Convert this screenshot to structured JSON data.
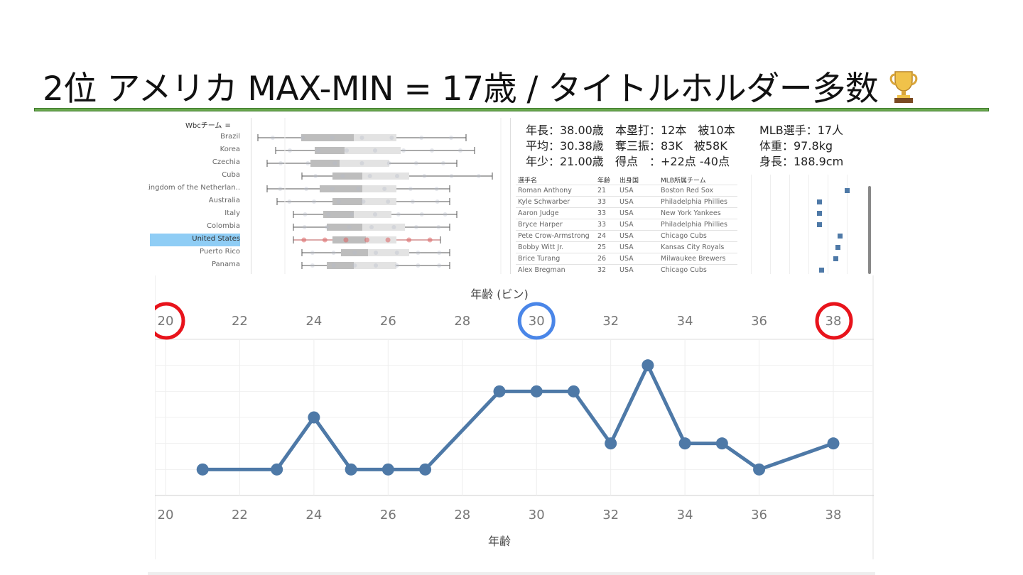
{
  "title": "2位 アメリカ MAX-MIN = 17歳 / タイトルホルダー多数",
  "trophy_icon": "trophy-icon",
  "accent_color": "#6aa84f",
  "boxplot": {
    "header": "Wbcチーム",
    "sort_icon": "sort-icon",
    "selected": "United States",
    "teams": [
      "Brazil",
      "Korea",
      "Czechia",
      "Cuba",
      "Kingdom of the Netherlan..",
      "Australia",
      "Italy",
      "Colombia",
      "United States",
      "Puerto Rico",
      "Panama"
    ]
  },
  "stats": {
    "oldest": "年長：38.00歳",
    "average": "平均：30.38歳",
    "youngest": "年少：21.00歳",
    "hr": "本塁打：12本　被10本",
    "so": "奪三振：83K　被58K",
    "runs": "得点　：+22点 -40点",
    "mlb": "MLB選手：17人",
    "weight": "体重：97.8kg",
    "height": "身長：188.9cm"
  },
  "player_table": {
    "headers": [
      "選手名",
      "年齢",
      "出身国",
      "MLB所属チーム"
    ],
    "rows": [
      [
        "Roman Anthony",
        "21",
        "USA",
        "Boston Red Sox"
      ],
      [
        "Kyle Schwarber",
        "33",
        "USA",
        "Philadelphia Phillies"
      ],
      [
        "Aaron Judge",
        "33",
        "USA",
        "New York Yankees"
      ],
      [
        "Bryce Harper",
        "33",
        "USA",
        "Philadelphia Phillies"
      ],
      [
        "Pete Crow-Armstrong",
        "24",
        "USA",
        "Chicago Cubs"
      ],
      [
        "Bobby Witt Jr.",
        "25",
        "USA",
        "Kansas City Royals"
      ],
      [
        "Brice Turang",
        "26",
        "USA",
        "Milwaukee Brewers"
      ],
      [
        "Alex Bregman",
        "32",
        "USA",
        "Chicago Cubs"
      ]
    ]
  },
  "chart_data": {
    "type": "line",
    "title": "年齢 (ビン)",
    "xlabel": "年齢",
    "ylabel": "",
    "x": [
      21,
      23,
      24,
      25,
      26,
      27,
      29,
      30,
      31,
      32,
      33,
      34,
      35,
      36,
      38
    ],
    "y": [
      1,
      1,
      3,
      1,
      1,
      1,
      4,
      4,
      4,
      2,
      5,
      2,
      2,
      1,
      2
    ],
    "xlim": [
      20,
      39
    ],
    "xticks": [
      "20",
      "22",
      "24",
      "26",
      "28",
      "30",
      "32",
      "34",
      "36",
      "38"
    ],
    "ylim": [
      0,
      6
    ],
    "line_color": "#4e79a7",
    "highlight_red": [
      "20",
      "38"
    ],
    "highlight_blue": [
      "30"
    ],
    "grid": true
  }
}
